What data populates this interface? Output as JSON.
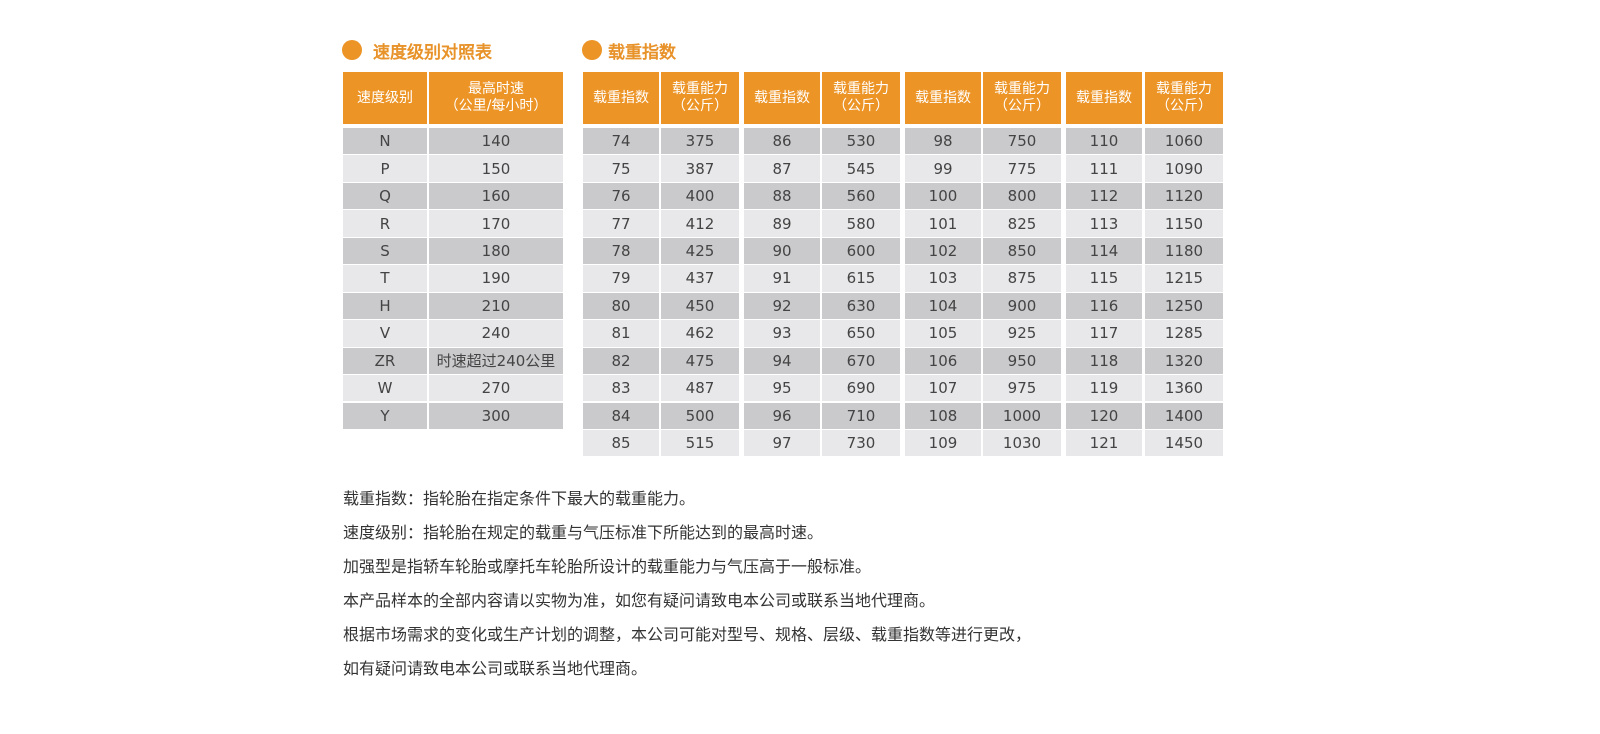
{
  "speed_table": {
    "title": "速度级别对照表",
    "headers": [
      "速度级别",
      "最高时速\n（公里/每小时）"
    ],
    "rows": [
      [
        "N",
        "140"
      ],
      [
        "P",
        "150"
      ],
      [
        "Q",
        "160"
      ],
      [
        "R",
        "170"
      ],
      [
        "S",
        "180"
      ],
      [
        "T",
        "190"
      ],
      [
        "H",
        "210"
      ],
      [
        "V",
        "240"
      ],
      [
        "ZR",
        "时速超过240公里"
      ],
      [
        "W",
        "270"
      ],
      [
        "Y",
        "300"
      ]
    ]
  },
  "load_table": {
    "title": "载重指数",
    "groups": [
      {
        "headers": [
          "载重指数",
          "载重能力\n（公斤）"
        ],
        "rows": [
          [
            "74",
            "375"
          ],
          [
            "75",
            "387"
          ],
          [
            "76",
            "400"
          ],
          [
            "77",
            "412"
          ],
          [
            "78",
            "425"
          ],
          [
            "79",
            "437"
          ],
          [
            "80",
            "450"
          ],
          [
            "81",
            "462"
          ],
          [
            "82",
            "475"
          ],
          [
            "83",
            "487"
          ],
          [
            "84",
            "500"
          ],
          [
            "85",
            "515"
          ]
        ]
      },
      {
        "headers": [
          "载重指数",
          "载重能力\n（公斤）"
        ],
        "rows": [
          [
            "86",
            "530"
          ],
          [
            "87",
            "545"
          ],
          [
            "88",
            "560"
          ],
          [
            "89",
            "580"
          ],
          [
            "90",
            "600"
          ],
          [
            "91",
            "615"
          ],
          [
            "92",
            "630"
          ],
          [
            "93",
            "650"
          ],
          [
            "94",
            "670"
          ],
          [
            "95",
            "690"
          ],
          [
            "96",
            "710"
          ],
          [
            "97",
            "730"
          ]
        ]
      },
      {
        "headers": [
          "载重指数",
          "载重能力\n（公斤）"
        ],
        "rows": [
          [
            "98",
            "750"
          ],
          [
            "99",
            "775"
          ],
          [
            "100",
            "800"
          ],
          [
            "101",
            "825"
          ],
          [
            "102",
            "850"
          ],
          [
            "103",
            "875"
          ],
          [
            "104",
            "900"
          ],
          [
            "105",
            "925"
          ],
          [
            "106",
            "950"
          ],
          [
            "107",
            "975"
          ],
          [
            "108",
            "1000"
          ],
          [
            "109",
            "1030"
          ]
        ]
      },
      {
        "headers": [
          "载重指数",
          "载重能力\n（公斤）"
        ],
        "rows": [
          [
            "110",
            "1060"
          ],
          [
            "111",
            "1090"
          ],
          [
            "112",
            "1120"
          ],
          [
            "113",
            "1150"
          ],
          [
            "114",
            "1180"
          ],
          [
            "115",
            "1215"
          ],
          [
            "116",
            "1250"
          ],
          [
            "117",
            "1285"
          ],
          [
            "118",
            "1320"
          ],
          [
            "119",
            "1360"
          ],
          [
            "120",
            "1400"
          ],
          [
            "121",
            "1450"
          ]
        ]
      }
    ]
  },
  "notes": [
    "载重指数：指轮胎在指定条件下最大的载重能力。",
    "速度级别：指轮胎在规定的载重与气压标准下所能达到的最高时速。",
    "加强型是指轿车轮胎或摩托车轮胎所设计的载重能力与气压高于一般标准。",
    "本产品样本的全部内容请以实物为准，如您有疑问请致电本公司或联系当地代理商。",
    "根据市场需求的变化或生产计划的调整，本公司可能对型号、规格、层级、载重指数等进行更改，",
    "如有疑问请致电本公司或联系当地代理商。"
  ]
}
